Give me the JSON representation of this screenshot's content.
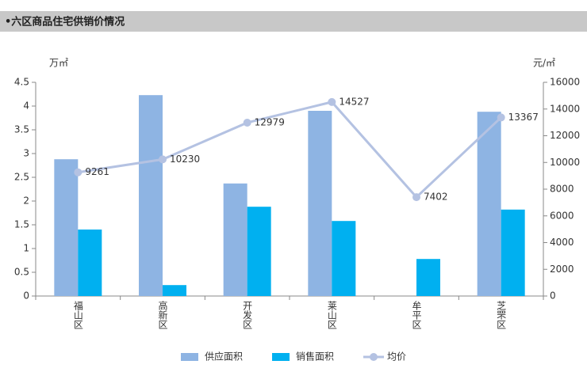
{
  "chart_data": {
    "type": "bar-line",
    "title": "•六区商品住宅供销价情况",
    "y_unit": "万㎡",
    "y2_unit": "元/㎡",
    "categories": [
      "福山区",
      "高新区",
      "开发区",
      "莱山区",
      "牟平区",
      "芝罘区"
    ],
    "series": [
      {
        "name": "供应面积",
        "type": "bar",
        "color": "#8eb4e3",
        "values": [
          2.88,
          4.23,
          2.37,
          3.9,
          null,
          3.88
        ]
      },
      {
        "name": "销售面积",
        "type": "bar",
        "color": "#00b0f0",
        "values": [
          1.4,
          0.23,
          1.88,
          1.58,
          0.78,
          1.82
        ]
      },
      {
        "name": "均价",
        "type": "line",
        "axis": "y2",
        "color": "#b4c2e2",
        "values": [
          9261,
          10230,
          12979,
          14527,
          7402,
          13367
        ]
      }
    ],
    "ylim": [
      0,
      4.5
    ],
    "yticks": [
      0,
      0.5,
      1,
      1.5,
      2,
      2.5,
      3,
      3.5,
      4,
      4.5
    ],
    "y2lim": [
      0,
      16000
    ],
    "y2ticks": [
      0,
      2000,
      4000,
      6000,
      8000,
      10000,
      12000,
      14000,
      16000
    ]
  }
}
